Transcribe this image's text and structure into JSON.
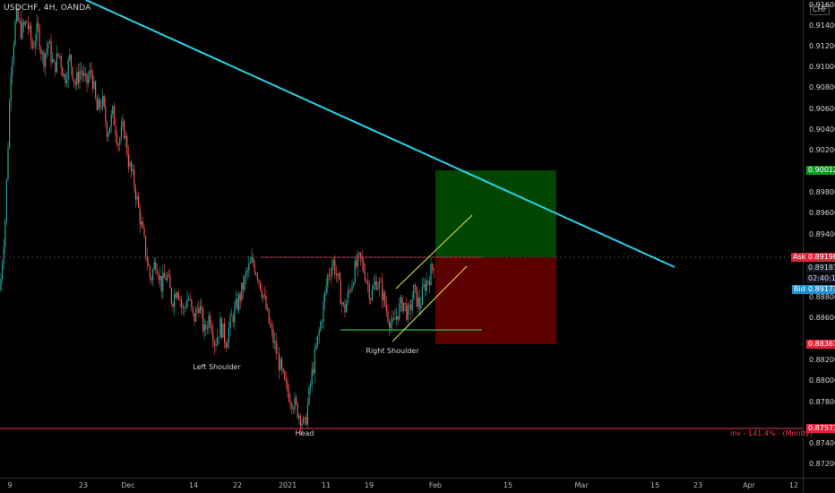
{
  "symbol": "USDCHF, 4H, OANDA",
  "currency": "CHF",
  "colors": {
    "background": "#000000",
    "up_candle": "#26a69a",
    "down_candle": "#ef5350",
    "trendline": "#27d3e8",
    "resistance": "#e8384f",
    "support": "#2fbf3f",
    "channel": "#e8e84a",
    "target_zone": "#004d00",
    "stop_zone": "#660000"
  },
  "price_axis": {
    "labels": [
      "0.91600",
      "0.91400",
      "0.91200",
      "0.91000",
      "0.90800",
      "0.90600",
      "0.90400",
      "0.90200",
      "0.89800",
      "0.89600",
      "0.89400",
      "0.88800",
      "0.88600",
      "0.88200",
      "0.88000",
      "0.87800",
      "0.87400",
      "0.87200"
    ]
  },
  "price_tags": {
    "target": "0.90012",
    "ask_label": "Ask",
    "ask": "0.89198",
    "last": "0.89187",
    "countdown": "02:40:17",
    "bid_label": "Bid",
    "bid": "0.89173",
    "stop": "0.88367",
    "neckline_low": "0.87573"
  },
  "time_axis": {
    "labels": [
      "9",
      "23",
      "Dec",
      "14",
      "22",
      "2021",
      "11",
      "19",
      "Feb",
      "15",
      "Mar",
      "15",
      "23",
      "Apr",
      "12"
    ]
  },
  "annotations": {
    "left_shoulder": "Left Shoulder",
    "head": "Head",
    "right_shoulder": "Right Shoulder",
    "inv_note": "inv - 141.4% - (Montly)"
  },
  "chart_data": {
    "type": "candlestick",
    "title": "USDCHF, 4H, OANDA",
    "ylim": [
      0.8713,
      0.9165
    ],
    "levels": {
      "resistance": 0.8921,
      "support_neck": 0.8855,
      "head_low": 0.87573,
      "target": 0.90012,
      "entry": 0.89198,
      "stop": 0.88367
    },
    "price_path": [
      [
        0,
        0.889
      ],
      [
        6,
        0.896
      ],
      [
        12,
        0.91
      ],
      [
        18,
        0.915
      ],
      [
        24,
        0.9135
      ],
      [
        30,
        0.9145
      ],
      [
        36,
        0.912
      ],
      [
        42,
        0.9138
      ],
      [
        48,
        0.9108
      ],
      [
        54,
        0.9125
      ],
      [
        60,
        0.91
      ],
      [
        66,
        0.9115
      ],
      [
        72,
        0.909
      ],
      [
        78,
        0.911
      ],
      [
        84,
        0.9085
      ],
      [
        90,
        0.91
      ],
      [
        96,
        0.9085
      ],
      [
        102,
        0.9098
      ],
      [
        108,
        0.906
      ],
      [
        114,
        0.907
      ],
      [
        120,
        0.904
      ],
      [
        126,
        0.9058
      ],
      [
        132,
        0.903
      ],
      [
        138,
        0.9045
      ],
      [
        144,
        0.901
      ],
      [
        150,
        0.899
      ],
      [
        156,
        0.896
      ],
      [
        162,
        0.893
      ],
      [
        168,
        0.89
      ],
      [
        174,
        0.892
      ],
      [
        180,
        0.8895
      ],
      [
        186,
        0.8905
      ],
      [
        192,
        0.888
      ],
      [
        198,
        0.8895
      ],
      [
        204,
        0.887
      ],
      [
        210,
        0.8885
      ],
      [
        216,
        0.8862
      ],
      [
        222,
        0.8878
      ],
      [
        228,
        0.885
      ],
      [
        234,
        0.8868
      ],
      [
        240,
        0.884
      ],
      [
        246,
        0.8858
      ],
      [
        252,
        0.8842
      ],
      [
        258,
        0.8862
      ],
      [
        264,
        0.8875
      ],
      [
        270,
        0.889
      ],
      [
        276,
        0.8908
      ],
      [
        282,
        0.8918
      ],
      [
        288,
        0.8905
      ],
      [
        294,
        0.8885
      ],
      [
        300,
        0.886
      ],
      [
        306,
        0.884
      ],
      [
        312,
        0.882
      ],
      [
        318,
        0.88
      ],
      [
        324,
        0.879
      ],
      [
        330,
        0.878
      ],
      [
        336,
        0.877
      ],
      [
        340,
        0.876
      ],
      [
        344,
        0.8785
      ],
      [
        348,
        0.881
      ],
      [
        354,
        0.884
      ],
      [
        360,
        0.887
      ],
      [
        366,
        0.8905
      ],
      [
        372,
        0.8918
      ],
      [
        378,
        0.8895
      ],
      [
        384,
        0.887
      ],
      [
        390,
        0.889
      ],
      [
        396,
        0.891
      ],
      [
        402,
        0.892
      ],
      [
        408,
        0.8905
      ],
      [
        414,
        0.8885
      ],
      [
        420,
        0.89
      ],
      [
        426,
        0.889
      ],
      [
        432,
        0.887
      ],
      [
        438,
        0.8855
      ],
      [
        444,
        0.887
      ],
      [
        450,
        0.888
      ],
      [
        456,
        0.8865
      ],
      [
        462,
        0.889
      ],
      [
        468,
        0.8875
      ],
      [
        474,
        0.8895
      ],
      [
        480,
        0.8905
      ],
      [
        485,
        0.8918
      ]
    ]
  }
}
